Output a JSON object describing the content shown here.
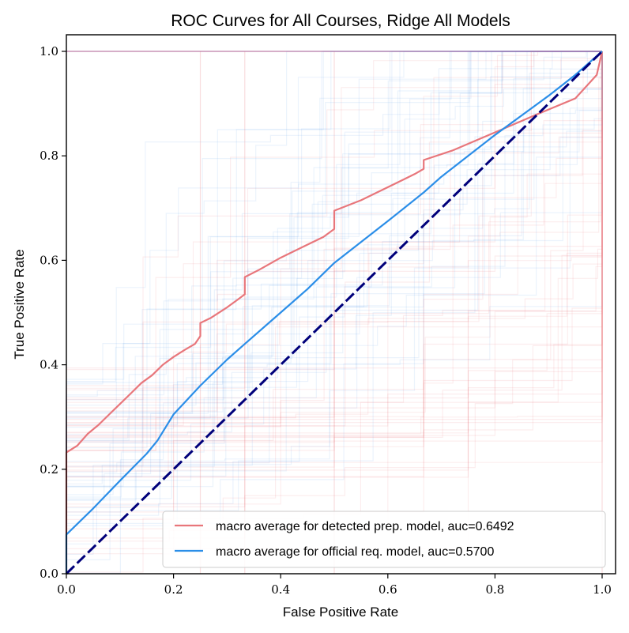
{
  "chart_data": {
    "type": "line",
    "title": "ROC Curves for All Courses, Ridge All Models",
    "xlabel": "False Positive Rate",
    "ylabel": "True Positive Rate",
    "xlim": [
      0.0,
      1.0
    ],
    "ylim": [
      0.0,
      1.0
    ],
    "x_ticks": [
      "0.0",
      "0.2",
      "0.4",
      "0.6",
      "0.8",
      "1.0"
    ],
    "y_ticks": [
      "0.0",
      "0.2",
      "0.4",
      "0.6",
      "0.8",
      "1.0"
    ],
    "grid": false,
    "legend_position": "lower-right",
    "series": [
      {
        "name": "macro average for detected prep. model, auc=0.6492",
        "color": "#e8767b",
        "x": [
          0.0,
          0.0,
          0.02,
          0.04,
          0.06,
          0.08,
          0.1,
          0.12,
          0.14,
          0.16,
          0.17,
          0.18,
          0.2,
          0.22,
          0.24,
          0.25,
          0.25,
          0.27,
          0.3,
          0.32,
          0.333,
          0.333,
          0.36,
          0.4,
          0.44,
          0.48,
          0.5,
          0.5,
          0.55,
          0.6,
          0.65,
          0.667,
          0.667,
          0.72,
          0.8,
          0.88,
          0.95,
          0.99,
          1.0
        ],
        "y": [
          0.0,
          0.232,
          0.245,
          0.268,
          0.285,
          0.305,
          0.325,
          0.345,
          0.365,
          0.38,
          0.39,
          0.4,
          0.415,
          0.428,
          0.44,
          0.455,
          0.48,
          0.49,
          0.51,
          0.525,
          0.535,
          0.568,
          0.582,
          0.605,
          0.625,
          0.645,
          0.66,
          0.695,
          0.715,
          0.74,
          0.765,
          0.775,
          0.792,
          0.81,
          0.845,
          0.88,
          0.91,
          0.955,
          1.0
        ]
      },
      {
        "name": "macro average for official req. model, auc=0.5700",
        "color": "#2b8ee8",
        "x": [
          0.0,
          0.0,
          0.05,
          0.1,
          0.15,
          0.17,
          0.2,
          0.25,
          0.3,
          0.333,
          0.4,
          0.45,
          0.5,
          0.55,
          0.6,
          0.667,
          0.7,
          0.8,
          0.9,
          0.95,
          1.0
        ],
        "y": [
          0.0,
          0.075,
          0.125,
          0.178,
          0.23,
          0.255,
          0.305,
          0.36,
          0.41,
          0.44,
          0.5,
          0.545,
          0.595,
          0.635,
          0.675,
          0.73,
          0.76,
          0.84,
          0.915,
          0.955,
          1.0
        ]
      },
      {
        "x": [
          0.0,
          1.0
        ],
        "y": [
          0.0,
          1.0
        ],
        "color": "#00007a",
        "style": "dashed"
      }
    ]
  }
}
